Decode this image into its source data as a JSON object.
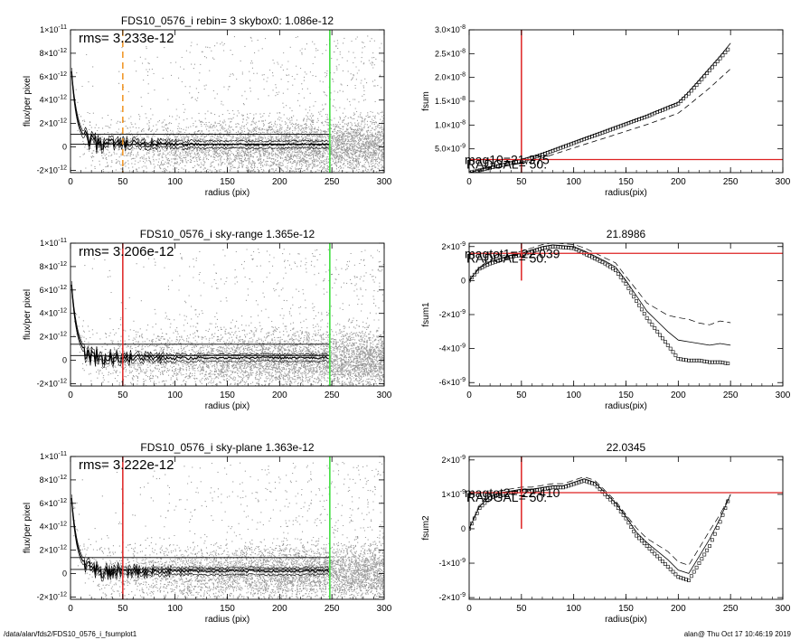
{
  "footer": {
    "path": "/data/alan/fds2/FDS10_0576_i_fsumplot1",
    "stamp": "alan@  Thu Oct 17 10:46:19 2019"
  },
  "chart_data": [
    {
      "id": "p1",
      "type": "scatter",
      "title": "FDS10_0576_i rebin= 3    skybox0:  1.086e-12",
      "xlabel": "radius (pix)",
      "ylabel": "flux/per pixel",
      "xlim": [
        0,
        300
      ],
      "ylim": [
        -2.2e-12,
        1e-11
      ],
      "xticks": [
        0,
        50,
        100,
        150,
        200,
        250,
        300
      ],
      "xticklabels": [
        "0",
        "50",
        "100",
        "150",
        "200",
        "250",
        "300"
      ],
      "yticks": [
        -2e-12,
        0,
        2e-12,
        4e-12,
        6e-12,
        8e-12,
        1e-11
      ],
      "yticklabels": [
        [
          "-2",
          "-12"
        ],
        [
          "0",
          ""
        ],
        [
          "2",
          "-12"
        ],
        [
          "4",
          "-12"
        ],
        [
          "6",
          "-12"
        ],
        [
          "8",
          "-12"
        ],
        [
          "1",
          "-11"
        ]
      ],
      "annotation": "rms= 3.233e-12",
      "hlines": [
        1.086e-12,
        2.4e-13
      ],
      "vlines": [
        {
          "x": 50,
          "color": "#f0921e",
          "style": "dashed"
        },
        {
          "x": 248,
          "color": "#33dd33",
          "style": "solid"
        }
      ],
      "profile": "flux"
    },
    {
      "id": "p2",
      "type": "line",
      "title": "",
      "xlabel": "radius(pix)",
      "ylabel": "fsum",
      "xlim": [
        0,
        300
      ],
      "ylim": [
        0,
        3e-08
      ],
      "xticks": [
        0,
        50,
        100,
        150,
        200,
        250,
        300
      ],
      "xticklabels": [
        "0",
        "50",
        "100",
        "150",
        "200",
        "250",
        "300"
      ],
      "yticks": [
        5e-09,
        1e-08,
        1.5e-08,
        2e-08,
        2.5e-08,
        3e-08
      ],
      "yticklabels": [
        [
          "5.0",
          "-9"
        ],
        [
          "1.0",
          "-8"
        ],
        [
          "1.5",
          "-8"
        ],
        [
          "2.0",
          "-8"
        ],
        [
          "2.5",
          "-8"
        ],
        [
          "3.0",
          "-8"
        ]
      ],
      "annotations": [
        "mag10=21.375",
        "RADGAL= 50."
      ],
      "hlines": [
        2.75e-09
      ],
      "vlines": [
        {
          "x": 50,
          "color": "#dd2222",
          "style": "solid"
        }
      ],
      "cross": {
        "x": 50,
        "y": 2.75e-09
      },
      "series": {
        "x": [
          0,
          10,
          20,
          30,
          40,
          50,
          60,
          70,
          80,
          90,
          100,
          110,
          120,
          130,
          140,
          150,
          160,
          170,
          180,
          190,
          200,
          210,
          220,
          230,
          240,
          250
        ],
        "y": [
          0,
          5e-10,
          1e-09,
          1.5e-09,
          2e-09,
          2.5e-09,
          3.1e-09,
          3.8e-09,
          4.6e-09,
          5.4e-09,
          6.2e-09,
          7e-09,
          7.8e-09,
          8.6e-09,
          9.4e-09,
          1.02e-08,
          1.1e-08,
          1.18e-08,
          1.27e-08,
          1.36e-08,
          1.45e-08,
          1.66e-08,
          1.9e-08,
          2.15e-08,
          2.4e-08,
          2.65e-08
        ],
        "upper": [
          0,
          6e-10,
          1.2e-09,
          1.8e-09,
          2.3e-09,
          2.8e-09,
          3.4e-09,
          4.1e-09,
          4.9e-09,
          5.7e-09,
          6.5e-09,
          7.3e-09,
          8.1e-09,
          8.9e-09,
          9.7e-09,
          1.05e-08,
          1.13e-08,
          1.21e-08,
          1.3e-08,
          1.39e-08,
          1.48e-08,
          1.7e-08,
          1.95e-08,
          2.2e-08,
          2.45e-08,
          2.72e-08
        ],
        "lower": [
          0,
          4e-10,
          8e-10,
          1.2e-09,
          1.6e-09,
          2e-09,
          2.5e-09,
          3.1e-09,
          3.8e-09,
          4.5e-09,
          5.2e-09,
          5.9e-09,
          6.6e-09,
          7.3e-09,
          8e-09,
          8.7e-09,
          9.4e-09,
          1.01e-08,
          1.09e-08,
          1.17e-08,
          1.25e-08,
          1.42e-08,
          1.6e-08,
          1.78e-08,
          1.98e-08,
          2.18e-08
        ]
      }
    },
    {
      "id": "p3",
      "type": "scatter",
      "title": "FDS10_0576_i sky-range  1.365e-12",
      "xlabel": "radius (pix)",
      "ylabel": "flux/per pixel",
      "xlim": [
        0,
        300
      ],
      "ylim": [
        -2.2e-12,
        1e-11
      ],
      "xticks": [
        0,
        50,
        100,
        150,
        200,
        250,
        300
      ],
      "xticklabels": [
        "0",
        "50",
        "100",
        "150",
        "200",
        "250",
        "300"
      ],
      "yticks": [
        -2e-12,
        0,
        2e-12,
        4e-12,
        6e-12,
        8e-12,
        1e-11
      ],
      "yticklabels": [
        [
          "-2",
          "-12"
        ],
        [
          "0",
          ""
        ],
        [
          "2",
          "-12"
        ],
        [
          "4",
          "-12"
        ],
        [
          "6",
          "-12"
        ],
        [
          "8",
          "-12"
        ],
        [
          "1",
          "-11"
        ]
      ],
      "annotation": "rms= 3.206e-12",
      "hlines": [
        1.365e-12,
        4e-13
      ],
      "vlines": [
        {
          "x": 50,
          "color": "#dd2222",
          "style": "solid"
        },
        {
          "x": 248,
          "color": "#33dd33",
          "style": "solid"
        }
      ],
      "profile": "flux"
    },
    {
      "id": "p4",
      "type": "line",
      "title": "21.8986",
      "xlabel": "radius(pix)",
      "ylabel": "fsum1",
      "xlim": [
        0,
        300
      ],
      "ylim": [
        -6.2e-09,
        2.2e-09
      ],
      "xticks": [
        0,
        50,
        100,
        150,
        200,
        250,
        300
      ],
      "xticklabels": [
        "0",
        "50",
        "100",
        "150",
        "200",
        "250",
        "300"
      ],
      "yticks": [
        -6e-09,
        -4e-09,
        -2e-09,
        0,
        2e-09
      ],
      "yticklabels": [
        [
          "-6",
          "-9"
        ],
        [
          "-4",
          "-9"
        ],
        [
          "-2",
          "-9"
        ],
        [
          "0",
          ""
        ],
        [
          "2",
          "-9"
        ]
      ],
      "annotations": [
        "magtot1= 22.039",
        "RADGAL= 50."
      ],
      "hlines": [
        1.6e-09
      ],
      "vlines": [
        {
          "x": 50,
          "color": "#dd2222",
          "style": "solid"
        }
      ],
      "cross": {
        "x": 50,
        "y": 1.6e-09
      },
      "series": {
        "x": [
          0,
          10,
          20,
          30,
          40,
          50,
          60,
          70,
          80,
          90,
          100,
          110,
          120,
          130,
          140,
          150,
          160,
          170,
          180,
          190,
          200,
          210,
          220,
          230,
          240,
          250
        ],
        "y": [
          0,
          7e-10,
          1e-09,
          1.2e-09,
          1.4e-09,
          1.5e-09,
          1.7e-09,
          1.9e-09,
          2e-09,
          1.95e-09,
          1.9e-09,
          1.6e-09,
          1.3e-09,
          1e-09,
          6e-10,
          -2e-10,
          -1.2e-09,
          -2.2e-09,
          -3e-09,
          -3.8e-09,
          -4.6e-09,
          -4.7e-09,
          -4.7e-09,
          -4.8e-09,
          -4.8e-09,
          -4.9e-09
        ],
        "upper": [
          0,
          7.5e-10,
          1.1e-09,
          1.3e-09,
          1.5e-09,
          1.6e-09,
          1.8e-09,
          2e-09,
          2.1e-09,
          2.05e-09,
          2e-09,
          1.75e-09,
          1.45e-09,
          1.15e-09,
          8e-10,
          0,
          -9e-10,
          -1.8e-09,
          -2.4e-09,
          -3e-09,
          -3.5e-09,
          -3.6e-09,
          -3.7e-09,
          -3.8e-09,
          -3.7e-09,
          -3.8e-09
        ],
        "lower": []
      }
    },
    {
      "id": "p5",
      "type": "scatter",
      "title": "FDS10_0576_i sky-plane  1.363e-12",
      "xlabel": "radius (pix)",
      "ylabel": "flux/per pixel",
      "xlim": [
        0,
        300
      ],
      "ylim": [
        -2.2e-12,
        1e-11
      ],
      "xticks": [
        0,
        50,
        100,
        150,
        200,
        250,
        300
      ],
      "xticklabels": [
        "0",
        "50",
        "100",
        "150",
        "200",
        "250",
        "300"
      ],
      "yticks": [
        -2e-12,
        0,
        2e-12,
        4e-12,
        6e-12,
        8e-12,
        1e-11
      ],
      "yticklabels": [
        [
          "-2",
          "-12"
        ],
        [
          "0",
          ""
        ],
        [
          "2",
          "-12"
        ],
        [
          "4",
          "-12"
        ],
        [
          "6",
          "-12"
        ],
        [
          "8",
          "-12"
        ],
        [
          "1",
          "-11"
        ]
      ],
      "annotation": "rms= 3.222e-12",
      "hlines": [
        1.363e-12,
        3.5e-13
      ],
      "vlines": [
        {
          "x": 50,
          "color": "#dd2222",
          "style": "solid"
        },
        {
          "x": 248,
          "color": "#33dd33",
          "style": "solid"
        }
      ],
      "profile": "flux"
    },
    {
      "id": "p6",
      "type": "line",
      "title": "22.0345",
      "xlabel": "radius(pix)",
      "ylabel": "fsum2",
      "xlim": [
        0,
        300
      ],
      "ylim": [
        -2.05e-09,
        2.1e-09
      ],
      "xticks": [
        0,
        50,
        100,
        150,
        200,
        250,
        300
      ],
      "xticklabels": [
        "0",
        "50",
        "100",
        "150",
        "200",
        "250",
        "300"
      ],
      "yticks": [
        -2e-09,
        -1e-09,
        0,
        1e-09,
        2e-09
      ],
      "yticklabels": [
        [
          "-2",
          "-9"
        ],
        [
          "-1",
          "-9"
        ],
        [
          "0",
          ""
        ],
        [
          "1",
          "-9"
        ],
        [
          "2",
          "-9"
        ]
      ],
      "annotations": [
        "magtot2= 22.410",
        "RADGAL= 50."
      ],
      "hlines": [
        1.05e-09
      ],
      "vlines": [
        {
          "x": 50,
          "color": "#dd2222",
          "style": "solid"
        }
      ],
      "cross": {
        "x": 50,
        "y": 1.05e-09
      },
      "series": {
        "x": [
          0,
          10,
          20,
          30,
          40,
          50,
          60,
          70,
          80,
          90,
          100,
          110,
          120,
          130,
          140,
          150,
          160,
          170,
          180,
          190,
          200,
          210,
          220,
          230,
          240,
          250
        ],
        "y": [
          0,
          6e-10,
          9e-10,
          1e-09,
          1.05e-09,
          1.1e-09,
          1.1e-09,
          1.15e-09,
          1.2e-09,
          1.2e-09,
          1.3e-09,
          1.4e-09,
          1.3e-09,
          1e-09,
          7e-10,
          3e-10,
          -2e-10,
          -5e-10,
          -8e-10,
          -1.1e-09,
          -1.4e-09,
          -1.5e-09,
          -1e-09,
          -5e-10,
          2e-10,
          1e-09
        ],
        "upper": [
          0,
          6.5e-10,
          9.5e-10,
          1.05e-09,
          1.1e-09,
          1.15e-09,
          1.15e-09,
          1.2e-09,
          1.25e-09,
          1.25e-09,
          1.35e-09,
          1.45e-09,
          1.35e-09,
          1.05e-09,
          7.5e-10,
          3.5e-10,
          -1e-10,
          -4e-10,
          -6.5e-10,
          -9e-10,
          -1.2e-09,
          -1.3e-09,
          -8e-10,
          -3e-10,
          3e-10,
          1e-09
        ],
        "lower": []
      }
    }
  ]
}
